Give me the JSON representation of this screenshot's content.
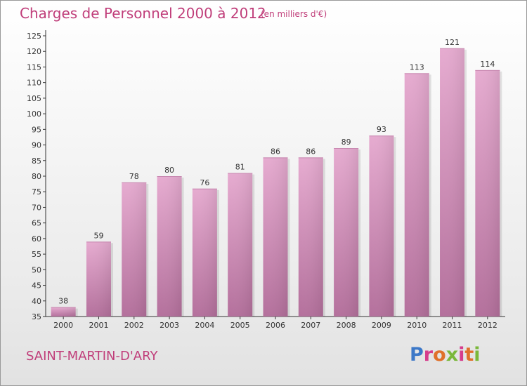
{
  "chart_data": {
    "type": "bar",
    "title": "Charges de Personnel 2000 à 2012",
    "subtitle": "(en milliers d'€)",
    "categories": [
      "2000",
      "2001",
      "2002",
      "2003",
      "2004",
      "2005",
      "2006",
      "2007",
      "2008",
      "2009",
      "2010",
      "2011",
      "2012"
    ],
    "values": [
      38,
      59,
      78,
      80,
      76,
      81,
      86,
      86,
      89,
      93,
      113,
      121,
      114
    ],
    "ylim": [
      35,
      125
    ],
    "yticks": [
      35,
      40,
      45,
      50,
      55,
      60,
      65,
      70,
      75,
      80,
      85,
      90,
      95,
      100,
      105,
      110,
      115,
      120,
      125
    ],
    "xlabel": "",
    "ylabel": "",
    "grid": false,
    "bar_color": "#d48ab4"
  },
  "footer": {
    "commune": "SAINT-MARTIN-D'ARY",
    "brand": "Proxiti"
  }
}
